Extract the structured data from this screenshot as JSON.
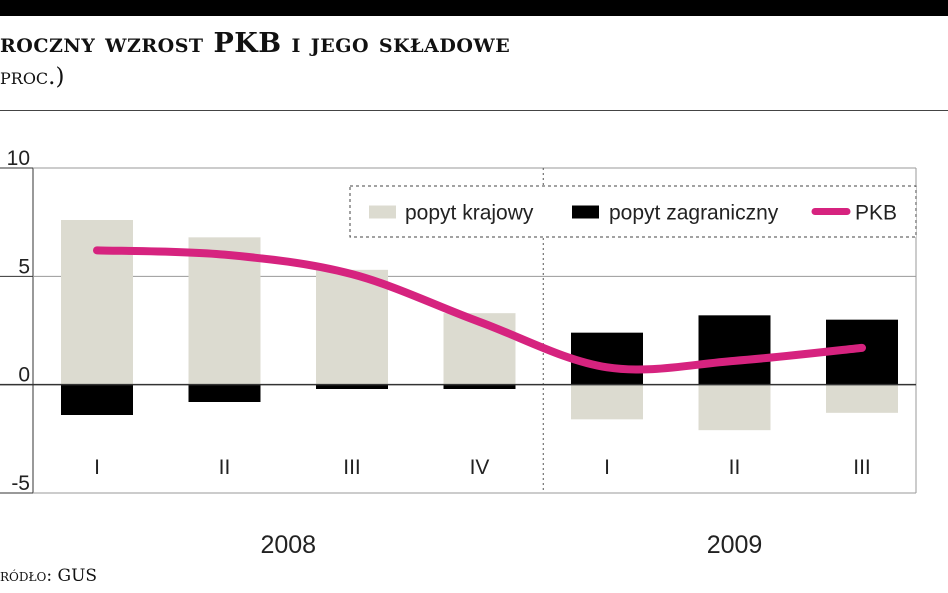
{
  "header": {
    "title": "roczny wzrost PKB i jego składowe",
    "subtitle": "proc.)"
  },
  "footer": {
    "source": "ródło: GUS"
  },
  "colors": {
    "domestic": "#dcdbd0",
    "foreign": "#000000",
    "gdp": "#d6237f",
    "grid": "#9a9a9a",
    "axis": "#333333"
  },
  "chart_data": {
    "type": "bar",
    "categories": [
      "I",
      "II",
      "III",
      "IV",
      "I",
      "II",
      "III"
    ],
    "years": [
      {
        "label": "2008",
        "quarters": 4
      },
      {
        "label": "2009",
        "quarters": 3
      }
    ],
    "series": [
      {
        "name": "popyt krajowy",
        "kind": "bar",
        "values": [
          7.6,
          6.8,
          5.3,
          3.3,
          -1.6,
          -2.1,
          -1.3
        ]
      },
      {
        "name": "popyt zagraniczny",
        "kind": "bar",
        "values": [
          -1.4,
          -0.8,
          -0.2,
          -0.2,
          2.4,
          3.2,
          3.0
        ]
      },
      {
        "name": "PKB",
        "kind": "line",
        "values": [
          6.2,
          6.0,
          5.1,
          2.9,
          0.8,
          1.1,
          1.7
        ]
      }
    ],
    "ylim": [
      -5,
      10
    ],
    "yticks": [
      "-5",
      "0",
      "5",
      "10"
    ],
    "ytick_values": [
      -5,
      0,
      5,
      10
    ],
    "grid": true,
    "legend_position": "top-right"
  }
}
